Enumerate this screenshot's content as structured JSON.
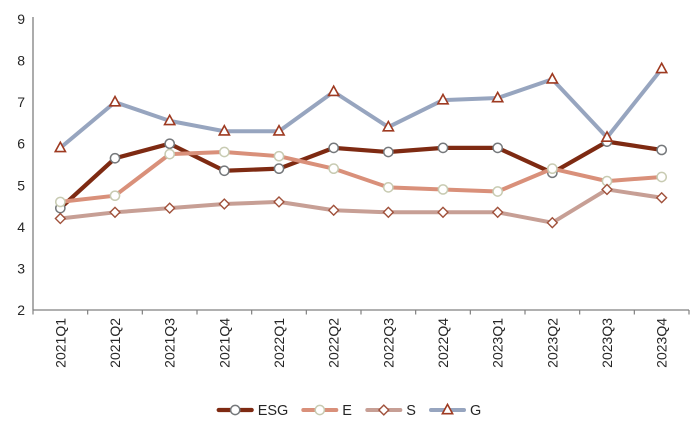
{
  "chart_data": {
    "type": "line",
    "title": "",
    "xlabel": "",
    "ylabel": "",
    "categories": [
      "2021Q1",
      "2021Q2",
      "2021Q3",
      "2021Q4",
      "2022Q1",
      "2022Q2",
      "2022Q3",
      "2022Q4",
      "2023Q1",
      "2023Q2",
      "2023Q3",
      "2023Q4"
    ],
    "series": [
      {
        "name": "ESG",
        "line_color": "#7E2A12",
        "marker": "circle",
        "marker_fill": "#FFFFFF",
        "marker_stroke": "#75787B",
        "line_width": 4.2,
        "values": [
          4.45,
          5.65,
          6.0,
          5.35,
          5.4,
          5.9,
          5.8,
          5.9,
          5.9,
          5.3,
          6.05,
          5.85
        ]
      },
      {
        "name": "E",
        "line_color": "#D9907A",
        "marker": "circle",
        "marker_fill": "#FFFFFF",
        "marker_stroke": "#C8CBB2",
        "line_width": 4.0,
        "values": [
          4.6,
          4.75,
          5.75,
          5.8,
          5.7,
          5.4,
          4.95,
          4.9,
          4.85,
          5.4,
          5.1,
          5.2
        ]
      },
      {
        "name": "S",
        "line_color": "#C79F95",
        "marker": "diamond",
        "marker_fill": "#FFFFFF",
        "marker_stroke": "#A0513B",
        "line_width": 4.0,
        "values": [
          4.2,
          4.35,
          4.45,
          4.55,
          4.6,
          4.4,
          4.35,
          4.35,
          4.35,
          4.1,
          4.9,
          4.7
        ]
      },
      {
        "name": "G",
        "line_color": "#97A5BF",
        "marker": "triangle",
        "marker_fill": "#FFFFFF",
        "marker_stroke": "#9E3A21",
        "line_width": 4.0,
        "values": [
          5.9,
          7.0,
          6.55,
          6.3,
          6.3,
          7.25,
          6.4,
          7.05,
          7.1,
          7.55,
          6.15,
          7.8
        ]
      }
    ],
    "y_axis": {
      "min": 2,
      "max": 9,
      "step": 1,
      "tick_labels": [
        "2",
        "3",
        "4",
        "5",
        "6",
        "7",
        "8",
        "9"
      ]
    },
    "x_axis": {
      "label_rotation": -90,
      "ticks_between_categories": true
    },
    "legend": {
      "position": "bottom",
      "labels": [
        "ESG",
        "E",
        "S",
        "G"
      ]
    },
    "grid": false,
    "axis_color": "#808080",
    "text_color": "#262626",
    "background": "#FFFFFF"
  }
}
